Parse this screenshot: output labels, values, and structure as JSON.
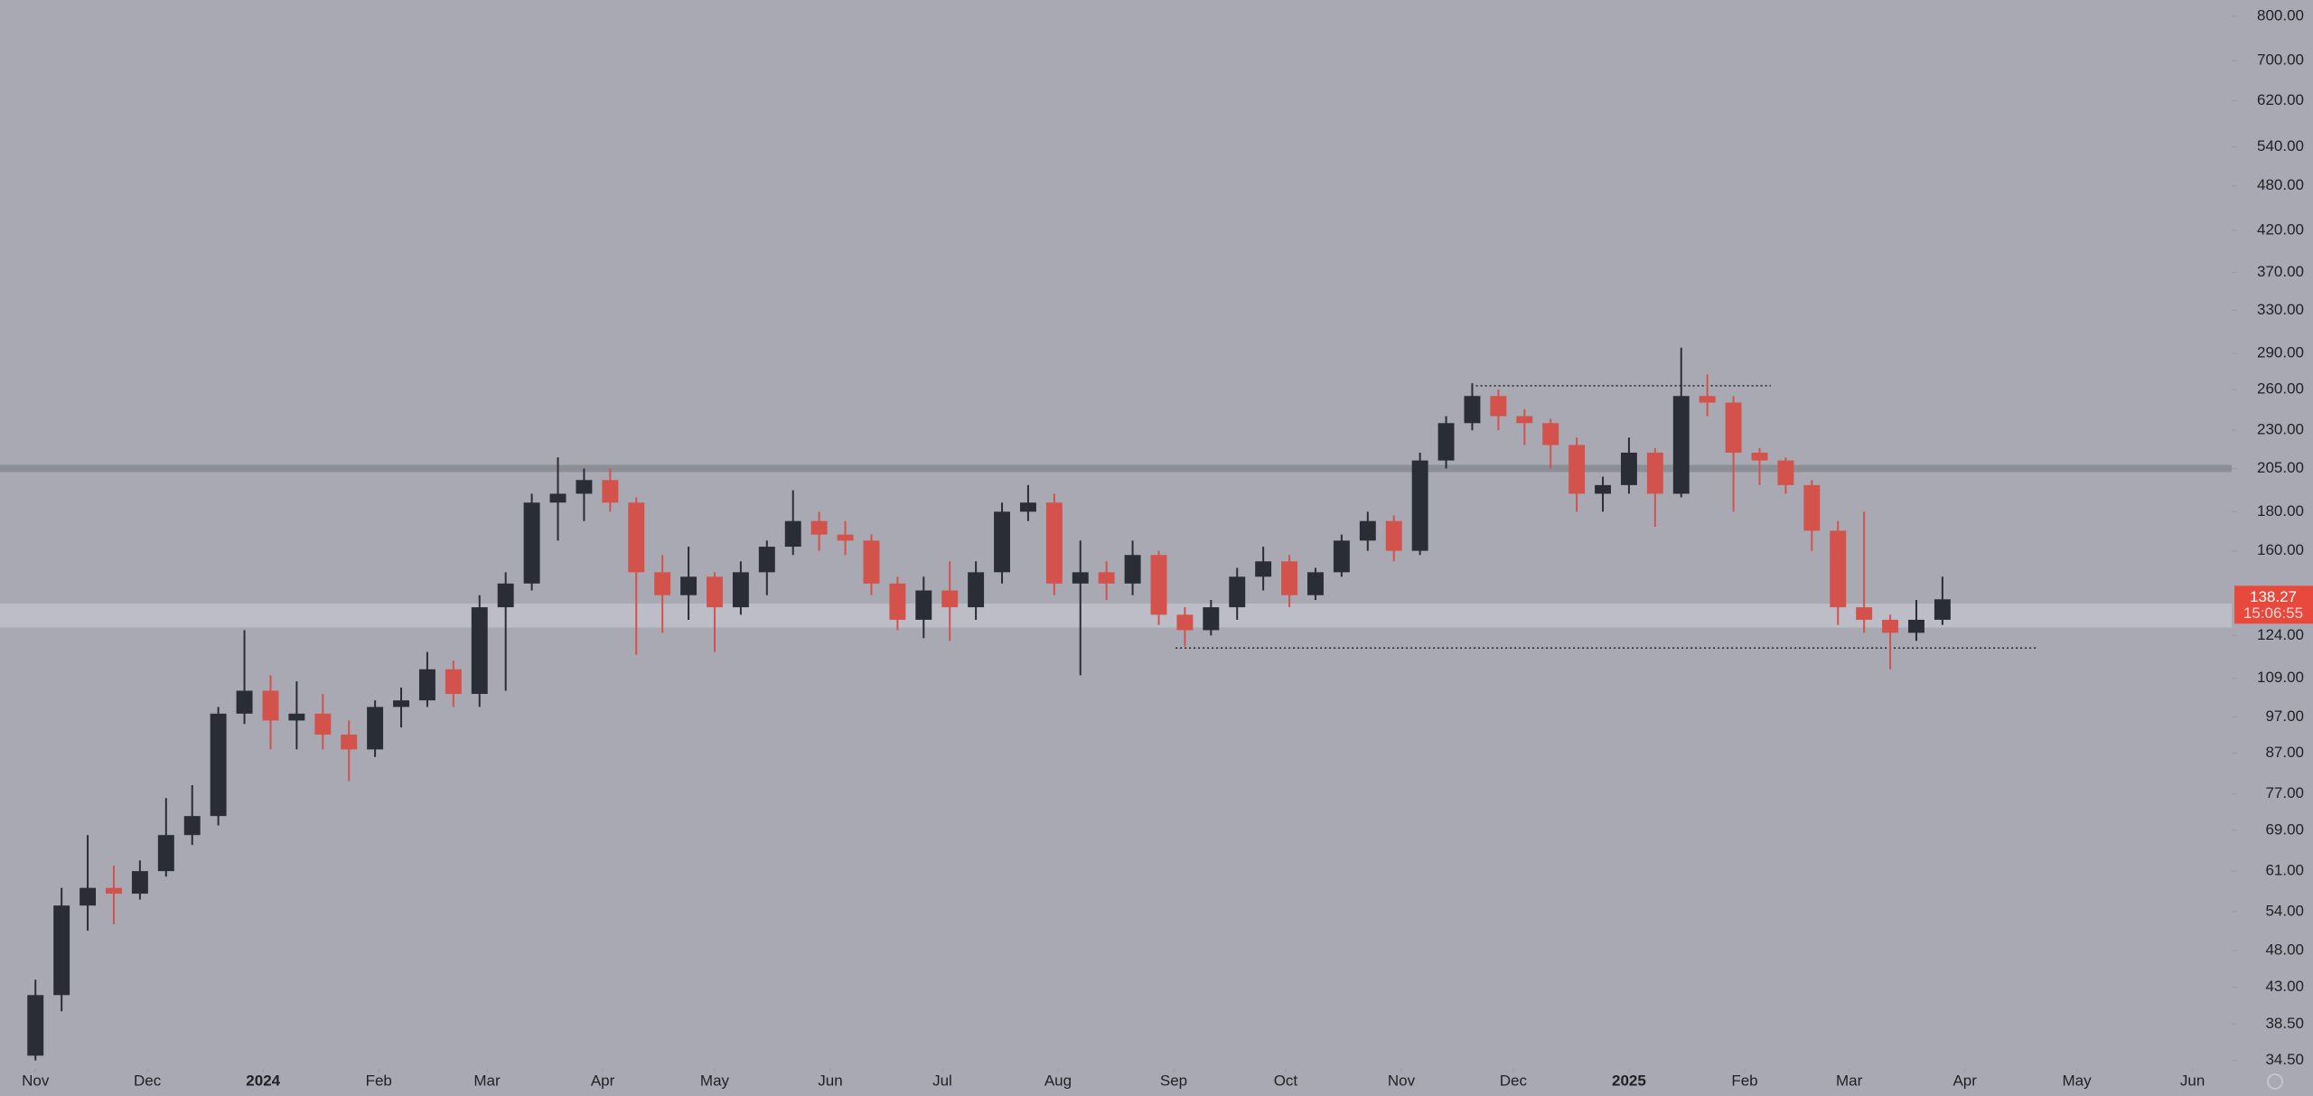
{
  "chart_data": {
    "type": "candlestick",
    "log_scale": true,
    "up_color": "#2a2d36",
    "down_color": "#d3524c",
    "xlim": [
      -9.5,
      588.5
    ],
    "xticks": [
      {
        "value": 0,
        "label": "Nov"
      },
      {
        "value": 30,
        "label": "Dec"
      },
      {
        "value": 61,
        "label": "2024"
      },
      {
        "value": 92,
        "label": "Feb"
      },
      {
        "value": 121,
        "label": "Mar"
      },
      {
        "value": 152,
        "label": "Apr"
      },
      {
        "value": 182,
        "label": "May"
      },
      {
        "value": 213,
        "label": "Jun"
      },
      {
        "value": 243,
        "label": "Jul"
      },
      {
        "value": 274,
        "label": "Aug"
      },
      {
        "value": 305,
        "label": "Sep"
      },
      {
        "value": 335,
        "label": "Oct"
      },
      {
        "value": 366,
        "label": "Nov"
      },
      {
        "value": 396,
        "label": "Dec"
      },
      {
        "value": 427,
        "label": "2025"
      },
      {
        "value": 458,
        "label": "Feb"
      },
      {
        "value": 486,
        "label": "Mar"
      },
      {
        "value": 517,
        "label": "Apr"
      },
      {
        "value": 547,
        "label": "May"
      },
      {
        "value": 578,
        "label": "Jun"
      }
    ],
    "ylim": [
      34,
      840
    ],
    "yticks": [
      {
        "value": 800,
        "label": "800.00"
      },
      {
        "value": 700,
        "label": "700.00"
      },
      {
        "value": 620,
        "label": "620.00"
      },
      {
        "value": 540,
        "label": "540.00"
      },
      {
        "value": 480,
        "label": "480.00"
      },
      {
        "value": 420,
        "label": "420.00"
      },
      {
        "value": 370,
        "label": "370.00"
      },
      {
        "value": 330,
        "label": "330.00"
      },
      {
        "value": 290,
        "label": "290.00"
      },
      {
        "value": 260,
        "label": "260.00"
      },
      {
        "value": 230,
        "label": "230.00"
      },
      {
        "value": 205,
        "label": "205.00"
      },
      {
        "value": 180,
        "label": "180.00"
      },
      {
        "value": 160,
        "label": "160.00"
      },
      {
        "value": 124,
        "label": "124.00"
      },
      {
        "value": 109,
        "label": "109.00"
      },
      {
        "value": 97,
        "label": "97.00"
      },
      {
        "value": 87,
        "label": "87.00"
      },
      {
        "value": 77,
        "label": "77.00"
      },
      {
        "value": 69,
        "label": "69.00"
      },
      {
        "value": 61,
        "label": "61.00"
      },
      {
        "value": 54,
        "label": "54.00"
      },
      {
        "value": 48,
        "label": "48.00"
      },
      {
        "value": 43,
        "label": "43.00"
      },
      {
        "value": 38.5,
        "label": "38.50"
      },
      {
        "value": 34.5,
        "label": "34.50"
      }
    ],
    "candles": {
      "x": [
        0,
        7,
        14,
        21,
        28,
        35,
        42,
        49,
        56,
        63,
        70,
        77,
        84,
        91,
        98,
        105,
        112,
        119,
        126,
        133,
        140,
        147,
        154,
        161,
        168,
        175,
        182,
        189,
        196,
        203,
        210,
        217,
        224,
        231,
        238,
        245,
        252,
        259,
        266,
        273,
        280,
        287,
        294,
        301,
        308,
        315,
        322,
        329,
        336,
        343,
        350,
        357,
        364,
        371,
        378,
        385,
        392,
        399,
        406,
        413,
        420,
        427,
        434,
        441,
        448,
        455,
        462,
        469,
        476,
        483,
        490,
        497,
        504,
        511
      ],
      "open": [
        35,
        42,
        55,
        58,
        57,
        61,
        68,
        72,
        98,
        105,
        96,
        98,
        92,
        88,
        100,
        102,
        112,
        104,
        135,
        145,
        185,
        190,
        198,
        185,
        150,
        140,
        148,
        135,
        150,
        162,
        175,
        168,
        165,
        145,
        130,
        142,
        135,
        150,
        180,
        185,
        145,
        150,
        145,
        158,
        132,
        126,
        135,
        148,
        155,
        140,
        150,
        165,
        175,
        160,
        210,
        235,
        255,
        240,
        235,
        220,
        190,
        195,
        215,
        190,
        255,
        250,
        215,
        210,
        195,
        170,
        135,
        130,
        125,
        130
      ],
      "high": [
        44,
        58,
        68,
        62,
        63,
        76,
        79,
        100,
        126,
        110,
        108,
        104,
        96,
        102,
        106,
        118,
        115,
        140,
        150,
        190,
        212,
        205,
        205,
        188,
        158,
        162,
        150,
        155,
        165,
        192,
        180,
        175,
        168,
        148,
        148,
        155,
        155,
        185,
        195,
        190,
        165,
        155,
        165,
        160,
        135,
        138,
        152,
        162,
        158,
        152,
        168,
        180,
        178,
        215,
        240,
        265,
        260,
        245,
        238,
        225,
        200,
        225,
        218,
        295,
        272,
        255,
        218,
        212,
        198,
        175,
        180,
        132,
        138,
        148
      ],
      "low": [
        34.5,
        40,
        51,
        52,
        56,
        60,
        66,
        70,
        95,
        88,
        88,
        88,
        80,
        86,
        94,
        100,
        100,
        100,
        105,
        142,
        165,
        175,
        180,
        117,
        125,
        130,
        118,
        132,
        140,
        158,
        160,
        158,
        140,
        126,
        123,
        122,
        130,
        145,
        175,
        140,
        110,
        138,
        140,
        128,
        120,
        124,
        130,
        142,
        135,
        138,
        148,
        160,
        155,
        158,
        205,
        230,
        230,
        220,
        205,
        180,
        180,
        190,
        172,
        188,
        240,
        180,
        195,
        190,
        160,
        128,
        125,
        112,
        122,
        128
      ],
      "close": [
        42,
        55,
        58,
        57,
        61,
        68,
        72,
        98,
        105,
        96,
        98,
        92,
        88,
        100,
        102,
        112,
        104,
        135,
        145,
        185,
        190,
        198,
        185,
        150,
        140,
        148,
        135,
        150,
        162,
        175,
        168,
        165,
        145,
        130,
        142,
        135,
        150,
        180,
        185,
        145,
        150,
        145,
        158,
        132,
        126,
        135,
        148,
        155,
        140,
        150,
        165,
        175,
        160,
        210,
        235,
        255,
        240,
        235,
        220,
        190,
        195,
        215,
        190,
        255,
        250,
        215,
        210,
        195,
        170,
        135,
        130,
        125,
        130,
        138.27
      ]
    },
    "levels": {
      "resistance": 205,
      "zone": [
        127,
        136.5
      ],
      "dotted": [
        {
          "y": 263,
          "x": [
            386,
            465
          ]
        },
        {
          "y": 119.4,
          "x": [
            305.5,
            536
          ]
        }
      ]
    },
    "last_price": 138.27,
    "countdown": "15:06:55"
  }
}
